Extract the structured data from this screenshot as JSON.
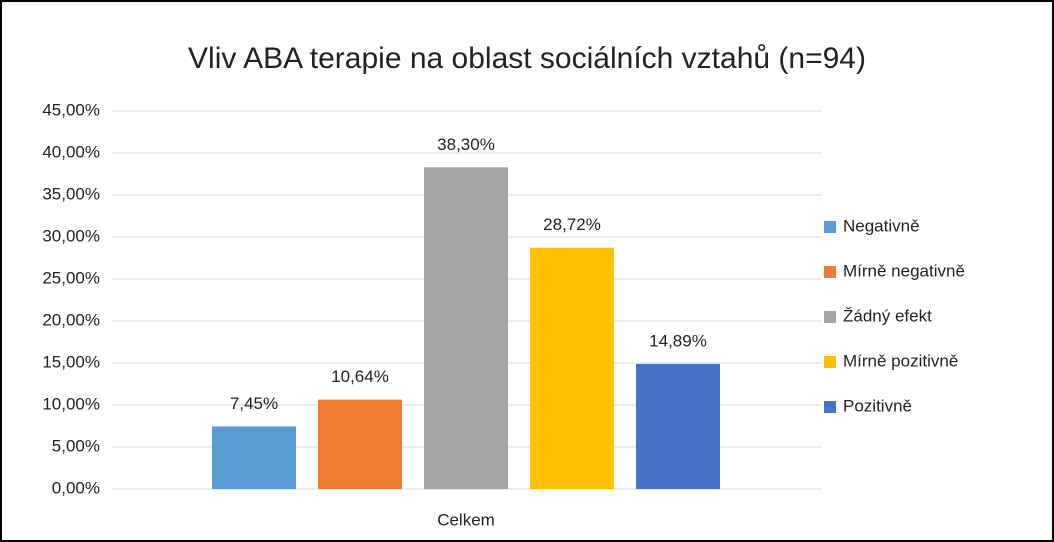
{
  "chart_data": {
    "type": "bar",
    "title": "Vliv ABA terapie na oblast sociálních vztahů (n=94)",
    "categories": [
      "Celkem"
    ],
    "series": [
      {
        "name": "Negativně",
        "color": "#5b9bd5",
        "values": [
          7.45
        ],
        "value_labels": [
          "7,45%"
        ]
      },
      {
        "name": "Mírně negativně",
        "color": "#ed7d31",
        "values": [
          10.64
        ],
        "value_labels": [
          "10,64%"
        ]
      },
      {
        "name": "Žádný efekt",
        "color": "#a5a5a5",
        "values": [
          38.3
        ],
        "value_labels": [
          "38,30%"
        ]
      },
      {
        "name": "Mírně pozitivně",
        "color": "#ffc000",
        "values": [
          28.72
        ],
        "value_labels": [
          "28,72%"
        ]
      },
      {
        "name": "Pozitivně",
        "color": "#4472c4",
        "values": [
          14.89
        ],
        "value_labels": [
          "14,89%"
        ]
      }
    ],
    "ylim": [
      0,
      45
    ],
    "yticks": [
      {
        "value": 0,
        "label": "0,00%"
      },
      {
        "value": 5,
        "label": "5,00%"
      },
      {
        "value": 10,
        "label": "10,00%"
      },
      {
        "value": 15,
        "label": "15,00%"
      },
      {
        "value": 20,
        "label": "20,00%"
      },
      {
        "value": 25,
        "label": "25,00%"
      },
      {
        "value": 30,
        "label": "30,00%"
      },
      {
        "value": 35,
        "label": "35,00%"
      },
      {
        "value": 40,
        "label": "40,00%"
      },
      {
        "value": 45,
        "label": "45,00%"
      }
    ],
    "grid": true,
    "legend": "right"
  }
}
